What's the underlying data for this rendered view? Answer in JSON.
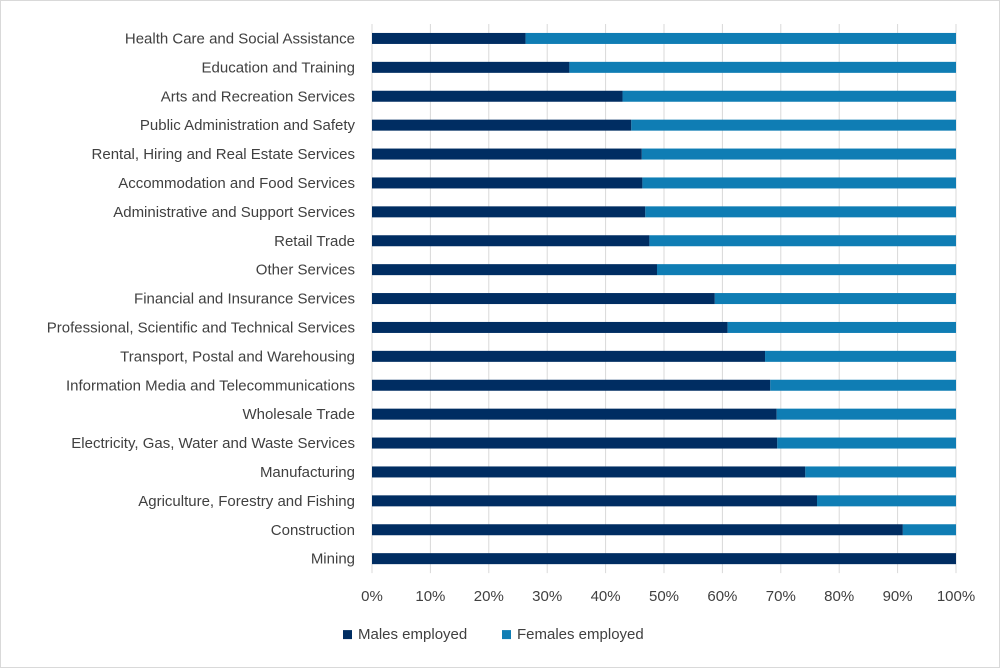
{
  "chart_data": {
    "type": "bar",
    "orientation": "horizontal",
    "stacked": "percent",
    "title": "",
    "xlabel": "",
    "ylabel": "",
    "xlim": [
      0,
      100
    ],
    "grid": true,
    "legend_position": "bottom",
    "categories": [
      "Health Care and Social Assistance",
      "Education and Training",
      "Arts and Recreation Services",
      "Public Administration and Safety",
      "Rental, Hiring and Real Estate Services",
      "Accommodation and Food Services",
      "Administrative and Support Services",
      "Retail Trade",
      "Other Services",
      "Financial and Insurance Services",
      "Professional, Scientific and Technical Services",
      "Transport, Postal and Warehousing",
      "Information Media and Telecommunications",
      "Wholesale Trade",
      "Electricity, Gas, Water and Waste Services",
      "Manufacturing",
      "Agriculture, Forestry and Fishing",
      "Construction",
      "Mining"
    ],
    "series": [
      {
        "name": "Males employed",
        "color": "#002D62",
        "values": [
          26.3,
          33.8,
          42.9,
          44.4,
          46.2,
          46.3,
          46.8,
          47.5,
          48.8,
          58.7,
          60.9,
          67.3,
          68.2,
          69.3,
          69.4,
          74.2,
          76.2,
          90.9,
          100
        ]
      },
      {
        "name": "Females employed",
        "color": "#0F7DB4",
        "values": [
          73.7,
          66.2,
          57.1,
          55.6,
          53.8,
          53.7,
          53.2,
          52.5,
          51.2,
          41.3,
          39.1,
          32.7,
          31.8,
          30.7,
          30.6,
          25.8,
          23.8,
          9.1,
          0
        ]
      }
    ],
    "x_ticks": [
      "0%",
      "10%",
      "20%",
      "30%",
      "40%",
      "50%",
      "60%",
      "70%",
      "80%",
      "90%",
      "100%"
    ]
  }
}
